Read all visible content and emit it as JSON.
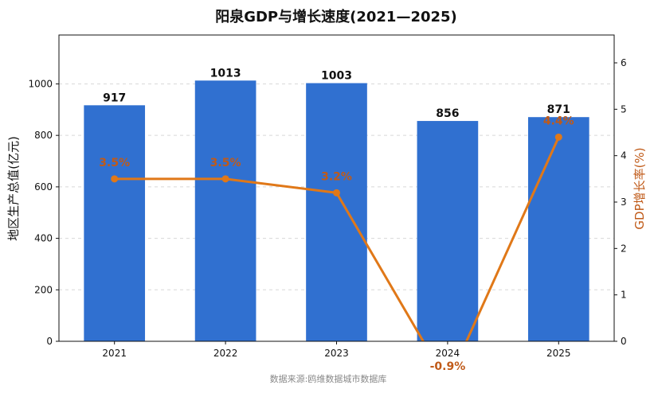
{
  "chart_data": {
    "type": "bar",
    "title": "阳泉GDP与增长速度(2021—2025)",
    "categories": [
      "2021",
      "2022",
      "2023",
      "2024",
      "2025"
    ],
    "series": [
      {
        "name": "",
        "type": "bar",
        "axis": "left",
        "values": [
          917,
          1013,
          1003,
          856,
          871
        ],
        "labels": [
          "917",
          "1013",
          "1003",
          "856",
          "871"
        ]
      },
      {
        "name": "",
        "type": "line",
        "axis": "right",
        "values": [
          3.5,
          3.5,
          3.2,
          -0.9,
          4.4
        ],
        "labels": [
          "3.5%",
          "3.5%",
          "3.2%",
          "-0.9%",
          "4.4%"
        ]
      }
    ],
    "ylabel": "地区生产总值(亿元)",
    "y2label": "GDP增长率(%)",
    "ylim": [
      0,
      1190
    ],
    "y2lim": [
      0,
      6.6
    ],
    "yticks": [
      "0",
      "200",
      "400",
      "600",
      "800",
      "1000"
    ],
    "y2ticks": [
      "0",
      "1",
      "2",
      "3",
      "4",
      "5",
      "6"
    ],
    "grid": true,
    "source": "数据来源:鸥维数据城市数据库",
    "colors": {
      "bar": "#3070d0",
      "line": "#e07818",
      "rate_text": "#c05a18",
      "text": "#111111"
    }
  }
}
